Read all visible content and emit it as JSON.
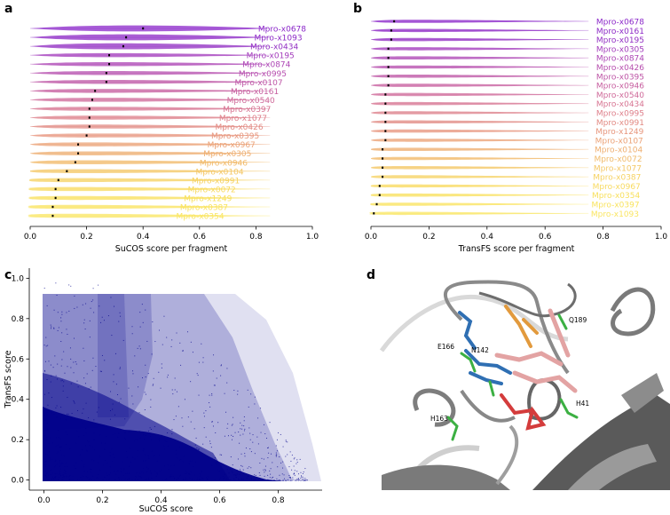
{
  "panel_labels": {
    "a": "a",
    "b": "b",
    "c": "c",
    "d": "d"
  },
  "chart_data": [
    {
      "type": "violin",
      "panel": "a",
      "xlabel": "SuCOS score per fragment",
      "xlim": [
        0.0,
        1.0
      ],
      "xticks": [
        "0.0",
        "0.2",
        "0.4",
        "0.6",
        "0.8",
        "1.0"
      ],
      "categories": [
        "Mpro-x0678",
        "Mpro-x1093",
        "Mpro-x0434",
        "Mpro-x0195",
        "Mpro-x0874",
        "Mpro-x0995",
        "Mpro-x0107",
        "Mpro-x0161",
        "Mpro-x0540",
        "Mpro-x0397",
        "Mpro-x1077",
        "Mpro-x0426",
        "Mpro-x0395",
        "Mpro-x0967",
        "Mpro-x0305",
        "Mpro-x0946",
        "Mpro-x0104",
        "Mpro-x0991",
        "Mpro-x0072",
        "Mpro-x1249",
        "Mpro-x0387",
        "Mpro-x0354"
      ],
      "medians": [
        0.4,
        0.34,
        0.33,
        0.28,
        0.28,
        0.27,
        0.27,
        0.23,
        0.22,
        0.21,
        0.21,
        0.21,
        0.2,
        0.17,
        0.17,
        0.16,
        0.13,
        0.1,
        0.09,
        0.09,
        0.08,
        0.08
      ],
      "colors": [
        "#8b27c9",
        "#8d2ac6",
        "#922fc3",
        "#a33cbc",
        "#ad45b5",
        "#b64dae",
        "#be55a6",
        "#c75e9f",
        "#cf6999",
        "#d77492",
        "#de7f8a",
        "#e28a83",
        "#e7967d",
        "#eba176",
        "#eeae70",
        "#f1ba6a",
        "#f4c765",
        "#f6d261",
        "#f8da5e",
        "#f8e05d",
        "#f9e35e",
        "#fae662"
      ],
      "grid": false
    },
    {
      "type": "violin",
      "panel": "b",
      "xlabel": "TransFS score per fragment",
      "xlim": [
        0.0,
        1.0
      ],
      "xticks": [
        "0.0",
        "0.2",
        "0.4",
        "0.6",
        "0.8",
        "1.0"
      ],
      "categories": [
        "Mpro-x0678",
        "Mpro-x0161",
        "Mpro-x0195",
        "Mpro-x0305",
        "Mpro-x0874",
        "Mpro-x0426",
        "Mpro-x0395",
        "Mpro-x0946",
        "Mpro-x0540",
        "Mpro-x0434",
        "Mpro-x0995",
        "Mpro-x0991",
        "Mpro-x1249",
        "Mpro-x0107",
        "Mpro-x0104",
        "Mpro-x0072",
        "Mpro-x1077",
        "Mpro-x0387",
        "Mpro-x0967",
        "Mpro-x0354",
        "Mpro-x0397",
        "Mpro-x1093"
      ],
      "medians": [
        0.08,
        0.07,
        0.07,
        0.06,
        0.06,
        0.06,
        0.06,
        0.06,
        0.05,
        0.05,
        0.05,
        0.05,
        0.05,
        0.05,
        0.04,
        0.04,
        0.04,
        0.04,
        0.03,
        0.03,
        0.02,
        0.01
      ],
      "colors": [
        "#8b27c9",
        "#8d2ac6",
        "#922fc3",
        "#a33cbc",
        "#ad45b5",
        "#b64dae",
        "#be55a6",
        "#c75e9f",
        "#cf6999",
        "#d77492",
        "#de7f8a",
        "#e28a83",
        "#e7967d",
        "#eba176",
        "#eeae70",
        "#f1ba6a",
        "#f4c765",
        "#f6d261",
        "#f8da5e",
        "#f8e05d",
        "#f9e35e",
        "#fae662"
      ],
      "grid": false
    },
    {
      "type": "scatter",
      "panel": "c",
      "xlabel": "SuCOS score",
      "ylabel": "TransFS score",
      "xlim": [
        -0.05,
        0.95
      ],
      "ylim": [
        -0.05,
        1.05
      ],
      "xticks": [
        "0.0",
        "0.2",
        "0.4",
        "0.6",
        "0.8"
      ],
      "yticks": [
        "0.0",
        "0.2",
        "0.4",
        "0.6",
        "0.8",
        "1.0"
      ],
      "color": "#00008b",
      "grid": false
    }
  ],
  "panel_d": {
    "type": "protein-structure-render",
    "residue_labels": [
      "Q189",
      "E166",
      "N142",
      "H163",
      "H41"
    ]
  }
}
